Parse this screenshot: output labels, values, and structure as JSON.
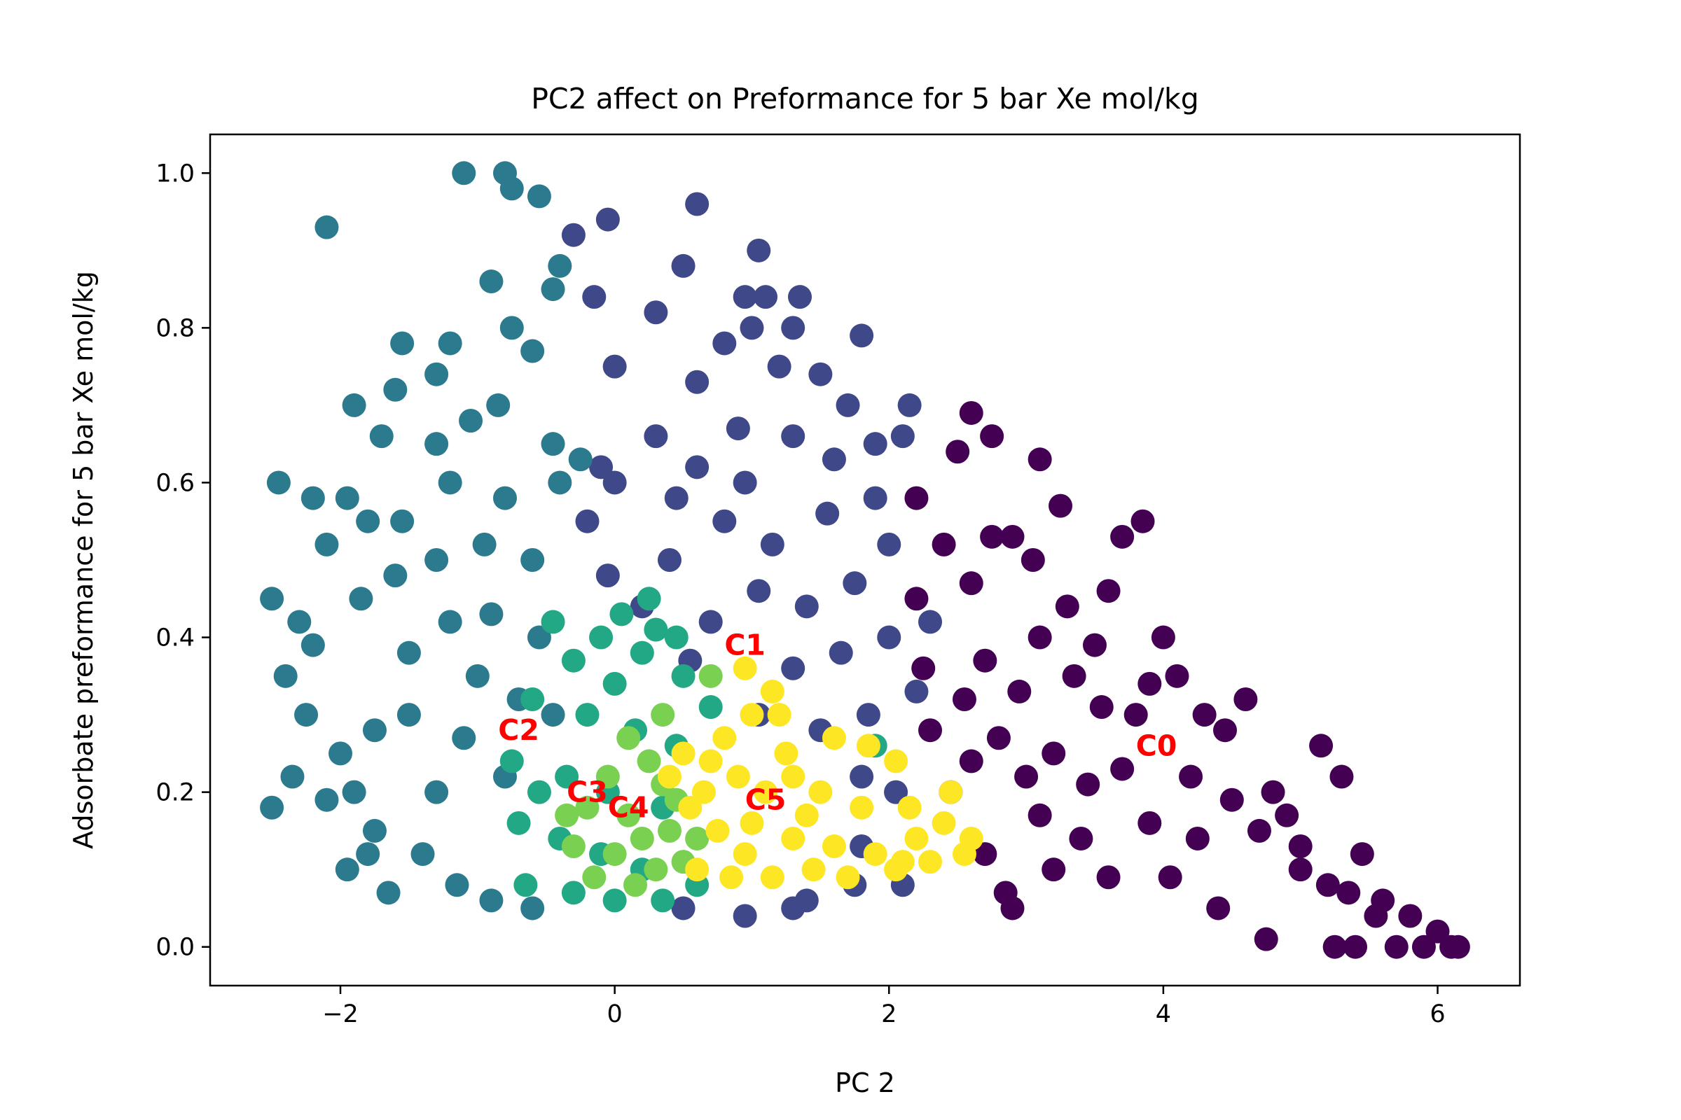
{
  "chart_data": {
    "type": "scatter",
    "title": "PC2 affect on Preformance for 5 bar Xe mol/kg",
    "xlabel": "PC 2",
    "ylabel": "Adsorbate preformance for 5 bar Xe mol/kg",
    "xlim": [
      -2.95,
      6.6
    ],
    "ylim": [
      -0.05,
      1.05
    ],
    "xticks": [
      -2,
      0,
      2,
      4,
      6
    ],
    "xtick_labels": [
      "−2",
      "0",
      "2",
      "4",
      "6"
    ],
    "yticks": [
      0.0,
      0.2,
      0.4,
      0.6,
      0.8,
      1.0
    ],
    "ytick_labels": [
      "0.0",
      "0.2",
      "0.4",
      "0.6",
      "0.8",
      "1.0"
    ],
    "grid": false,
    "legend": "none",
    "clusters": [
      {
        "label": "C0",
        "color": "#440154",
        "center": [
          3.95,
          0.26
        ],
        "points": [
          [
            2.2,
            0.58
          ],
          [
            2.5,
            0.64
          ],
          [
            2.75,
            0.66
          ],
          [
            2.6,
            0.69
          ],
          [
            3.1,
            0.63
          ],
          [
            3.25,
            0.57
          ],
          [
            3.7,
            0.53
          ],
          [
            3.85,
            0.55
          ],
          [
            3.6,
            0.46
          ],
          [
            3.5,
            0.39
          ],
          [
            3.9,
            0.34
          ],
          [
            4.0,
            0.4
          ],
          [
            4.1,
            0.35
          ],
          [
            4.3,
            0.3
          ],
          [
            4.6,
            0.32
          ],
          [
            4.45,
            0.28
          ],
          [
            5.15,
            0.26
          ],
          [
            5.3,
            0.22
          ],
          [
            4.8,
            0.2
          ],
          [
            4.9,
            0.17
          ],
          [
            5.0,
            0.13
          ],
          [
            5.45,
            0.12
          ],
          [
            5.2,
            0.08
          ],
          [
            5.6,
            0.06
          ],
          [
            5.8,
            0.04
          ],
          [
            6.0,
            0.02
          ],
          [
            6.15,
            0.0
          ],
          [
            5.9,
            0.0
          ],
          [
            5.7,
            0.0
          ],
          [
            5.4,
            0.0
          ],
          [
            5.25,
            0.0
          ],
          [
            4.75,
            0.01
          ],
          [
            4.4,
            0.05
          ],
          [
            4.05,
            0.09
          ],
          [
            3.6,
            0.09
          ],
          [
            3.2,
            0.1
          ],
          [
            2.9,
            0.05
          ],
          [
            2.85,
            0.07
          ],
          [
            2.7,
            0.12
          ],
          [
            2.45,
            0.2
          ],
          [
            2.3,
            0.28
          ],
          [
            2.25,
            0.36
          ],
          [
            2.2,
            0.45
          ],
          [
            2.4,
            0.52
          ],
          [
            2.6,
            0.47
          ],
          [
            2.75,
            0.53
          ],
          [
            2.9,
            0.53
          ],
          [
            3.05,
            0.5
          ],
          [
            3.3,
            0.44
          ],
          [
            3.1,
            0.4
          ],
          [
            2.95,
            0.33
          ],
          [
            2.7,
            0.37
          ],
          [
            2.55,
            0.32
          ],
          [
            2.8,
            0.27
          ],
          [
            3.0,
            0.22
          ],
          [
            3.2,
            0.25
          ],
          [
            3.45,
            0.21
          ],
          [
            3.7,
            0.23
          ],
          [
            3.55,
            0.31
          ],
          [
            3.35,
            0.35
          ],
          [
            3.8,
            0.3
          ],
          [
            4.2,
            0.22
          ],
          [
            4.5,
            0.19
          ],
          [
            4.25,
            0.14
          ],
          [
            3.9,
            0.16
          ],
          [
            3.4,
            0.14
          ],
          [
            3.1,
            0.17
          ],
          [
            2.6,
            0.24
          ],
          [
            4.7,
            0.15
          ],
          [
            5.0,
            0.1
          ],
          [
            5.35,
            0.07
          ],
          [
            5.55,
            0.04
          ],
          [
            6.1,
            0.0
          ]
        ]
      },
      {
        "label": "C1",
        "color": "#3f4889",
        "center": [
          0.95,
          0.39
        ],
        "points": [
          [
            -0.3,
            0.92
          ],
          [
            -0.05,
            0.94
          ],
          [
            0.6,
            0.96
          ],
          [
            1.05,
            0.9
          ],
          [
            1.1,
            0.84
          ],
          [
            1.35,
            0.84
          ],
          [
            1.3,
            0.8
          ],
          [
            1.8,
            0.79
          ],
          [
            0.95,
            0.84
          ],
          [
            -0.15,
            0.84
          ],
          [
            0.5,
            0.88
          ],
          [
            1.0,
            0.8
          ],
          [
            0.3,
            0.82
          ],
          [
            0.8,
            0.78
          ],
          [
            0.0,
            0.75
          ],
          [
            0.6,
            0.73
          ],
          [
            1.2,
            0.75
          ],
          [
            1.5,
            0.74
          ],
          [
            1.7,
            0.7
          ],
          [
            2.15,
            0.7
          ],
          [
            2.1,
            0.66
          ],
          [
            1.9,
            0.65
          ],
          [
            1.6,
            0.63
          ],
          [
            1.3,
            0.66
          ],
          [
            0.9,
            0.67
          ],
          [
            0.6,
            0.62
          ],
          [
            0.3,
            0.66
          ],
          [
            0.0,
            0.6
          ],
          [
            -0.2,
            0.55
          ],
          [
            0.4,
            0.5
          ],
          [
            0.8,
            0.55
          ],
          [
            1.15,
            0.52
          ],
          [
            1.55,
            0.56
          ],
          [
            1.9,
            0.58
          ],
          [
            2.0,
            0.52
          ],
          [
            1.75,
            0.47
          ],
          [
            1.4,
            0.44
          ],
          [
            1.05,
            0.46
          ],
          [
            0.7,
            0.42
          ],
          [
            1.3,
            0.36
          ],
          [
            1.65,
            0.38
          ],
          [
            2.0,
            0.4
          ],
          [
            2.3,
            0.42
          ],
          [
            2.2,
            0.33
          ],
          [
            1.85,
            0.3
          ],
          [
            1.5,
            0.28
          ],
          [
            1.8,
            0.22
          ],
          [
            2.05,
            0.2
          ],
          [
            1.8,
            0.13
          ],
          [
            2.1,
            0.08
          ],
          [
            1.75,
            0.08
          ],
          [
            1.4,
            0.06
          ],
          [
            1.3,
            0.05
          ],
          [
            0.95,
            0.04
          ],
          [
            0.5,
            0.05
          ],
          [
            -0.05,
            0.48
          ],
          [
            0.2,
            0.44
          ],
          [
            0.55,
            0.37
          ],
          [
            1.05,
            0.3
          ],
          [
            -0.1,
            0.62
          ],
          [
            0.45,
            0.58
          ],
          [
            0.95,
            0.6
          ]
        ]
      },
      {
        "label": "C2",
        "color": "#2c7a8e",
        "center": [
          -0.7,
          0.28
        ],
        "points": [
          [
            -1.1,
            1.0
          ],
          [
            -0.8,
            1.0
          ],
          [
            -0.75,
            0.98
          ],
          [
            -0.55,
            0.97
          ],
          [
            -2.1,
            0.93
          ],
          [
            -0.4,
            0.88
          ],
          [
            -0.45,
            0.85
          ],
          [
            -0.9,
            0.86
          ],
          [
            -1.2,
            0.78
          ],
          [
            -1.55,
            0.78
          ],
          [
            -0.75,
            0.8
          ],
          [
            -0.6,
            0.77
          ],
          [
            -1.3,
            0.74
          ],
          [
            -1.05,
            0.68
          ],
          [
            -1.9,
            0.7
          ],
          [
            -1.6,
            0.72
          ],
          [
            -1.7,
            0.66
          ],
          [
            -1.3,
            0.65
          ],
          [
            -0.85,
            0.7
          ],
          [
            -0.45,
            0.65
          ],
          [
            -2.45,
            0.6
          ],
          [
            -2.2,
            0.58
          ],
          [
            -1.95,
            0.58
          ],
          [
            -1.8,
            0.55
          ],
          [
            -2.1,
            0.52
          ],
          [
            -1.55,
            0.55
          ],
          [
            -1.2,
            0.6
          ],
          [
            -0.8,
            0.58
          ],
          [
            -2.5,
            0.45
          ],
          [
            -2.3,
            0.42
          ],
          [
            -2.2,
            0.39
          ],
          [
            -1.85,
            0.45
          ],
          [
            -1.6,
            0.48
          ],
          [
            -1.3,
            0.5
          ],
          [
            -0.95,
            0.52
          ],
          [
            -0.6,
            0.5
          ],
          [
            -2.4,
            0.35
          ],
          [
            -2.25,
            0.3
          ],
          [
            -2.0,
            0.25
          ],
          [
            -1.9,
            0.2
          ],
          [
            -1.75,
            0.28
          ],
          [
            -1.5,
            0.38
          ],
          [
            -1.2,
            0.42
          ],
          [
            -0.9,
            0.43
          ],
          [
            -0.55,
            0.4
          ],
          [
            -2.5,
            0.18
          ],
          [
            -2.35,
            0.22
          ],
          [
            -2.1,
            0.19
          ],
          [
            -1.75,
            0.15
          ],
          [
            -1.95,
            0.1
          ],
          [
            -1.8,
            0.12
          ],
          [
            -1.65,
            0.07
          ],
          [
            -1.4,
            0.12
          ],
          [
            -1.15,
            0.08
          ],
          [
            -0.9,
            0.06
          ],
          [
            -0.6,
            0.05
          ],
          [
            -1.3,
            0.2
          ],
          [
            -1.1,
            0.27
          ],
          [
            -0.8,
            0.22
          ],
          [
            -1.5,
            0.3
          ],
          [
            -1.0,
            0.35
          ],
          [
            -0.7,
            0.32
          ],
          [
            -0.45,
            0.3
          ],
          [
            -0.4,
            0.6
          ],
          [
            -0.25,
            0.63
          ]
        ]
      },
      {
        "label": "C3",
        "color": "#22a884",
        "center": [
          -0.2,
          0.2
        ],
        "points": [
          [
            0.25,
            0.45
          ],
          [
            0.3,
            0.41
          ],
          [
            0.45,
            0.4
          ],
          [
            0.05,
            0.43
          ],
          [
            -0.1,
            0.4
          ],
          [
            -0.45,
            0.42
          ],
          [
            -0.3,
            0.37
          ],
          [
            0.2,
            0.38
          ],
          [
            0.5,
            0.35
          ],
          [
            -0.6,
            0.32
          ],
          [
            -0.2,
            0.3
          ],
          [
            0.15,
            0.28
          ],
          [
            0.45,
            0.26
          ],
          [
            -0.75,
            0.24
          ],
          [
            -0.35,
            0.22
          ],
          [
            -0.05,
            0.2
          ],
          [
            0.35,
            0.18
          ],
          [
            -0.7,
            0.16
          ],
          [
            -0.4,
            0.14
          ],
          [
            -0.1,
            0.12
          ],
          [
            0.2,
            0.1
          ],
          [
            -0.65,
            0.08
          ],
          [
            -0.3,
            0.07
          ],
          [
            0.0,
            0.06
          ],
          [
            0.35,
            0.06
          ],
          [
            0.6,
            0.08
          ],
          [
            0.7,
            0.31
          ],
          [
            1.9,
            0.26
          ],
          [
            -0.55,
            0.2
          ],
          [
            0.0,
            0.34
          ]
        ]
      },
      {
        "label": "C4",
        "color": "#7ad151",
        "center": [
          0.1,
          0.18
        ],
        "points": [
          [
            0.1,
            0.27
          ],
          [
            0.25,
            0.24
          ],
          [
            -0.05,
            0.22
          ],
          [
            0.35,
            0.21
          ],
          [
            -0.2,
            0.18
          ],
          [
            0.1,
            0.17
          ],
          [
            0.4,
            0.15
          ],
          [
            -0.3,
            0.13
          ],
          [
            0.0,
            0.12
          ],
          [
            0.3,
            0.1
          ],
          [
            -0.15,
            0.09
          ],
          [
            0.15,
            0.08
          ],
          [
            0.5,
            0.11
          ],
          [
            0.6,
            0.14
          ],
          [
            0.45,
            0.19
          ],
          [
            -0.35,
            0.17
          ],
          [
            0.2,
            0.14
          ],
          [
            0.7,
            0.35
          ],
          [
            0.35,
            0.3
          ]
        ]
      },
      {
        "label": "C5",
        "color": "#fde725",
        "center": [
          1.1,
          0.19
        ],
        "points": [
          [
            0.95,
            0.36
          ],
          [
            1.15,
            0.33
          ],
          [
            1.0,
            0.3
          ],
          [
            1.2,
            0.3
          ],
          [
            0.8,
            0.27
          ],
          [
            1.3,
            0.22
          ],
          [
            1.6,
            0.27
          ],
          [
            1.85,
            0.26
          ],
          [
            2.05,
            0.24
          ],
          [
            2.45,
            0.2
          ],
          [
            0.5,
            0.25
          ],
          [
            0.7,
            0.24
          ],
          [
            0.9,
            0.22
          ],
          [
            1.1,
            0.2
          ],
          [
            1.5,
            0.2
          ],
          [
            1.8,
            0.18
          ],
          [
            2.15,
            0.18
          ],
          [
            2.4,
            0.16
          ],
          [
            2.6,
            0.14
          ],
          [
            2.55,
            0.12
          ],
          [
            0.55,
            0.18
          ],
          [
            0.75,
            0.15
          ],
          [
            1.0,
            0.16
          ],
          [
            1.3,
            0.14
          ],
          [
            1.6,
            0.13
          ],
          [
            1.9,
            0.12
          ],
          [
            2.1,
            0.11
          ],
          [
            2.3,
            0.11
          ],
          [
            0.6,
            0.1
          ],
          [
            0.85,
            0.09
          ],
          [
            1.15,
            0.09
          ],
          [
            1.45,
            0.1
          ],
          [
            1.7,
            0.09
          ],
          [
            2.05,
            0.1
          ],
          [
            0.4,
            0.22
          ],
          [
            0.65,
            0.2
          ],
          [
            1.25,
            0.25
          ],
          [
            1.4,
            0.17
          ],
          [
            2.2,
            0.14
          ],
          [
            0.95,
            0.12
          ]
        ]
      }
    ]
  }
}
